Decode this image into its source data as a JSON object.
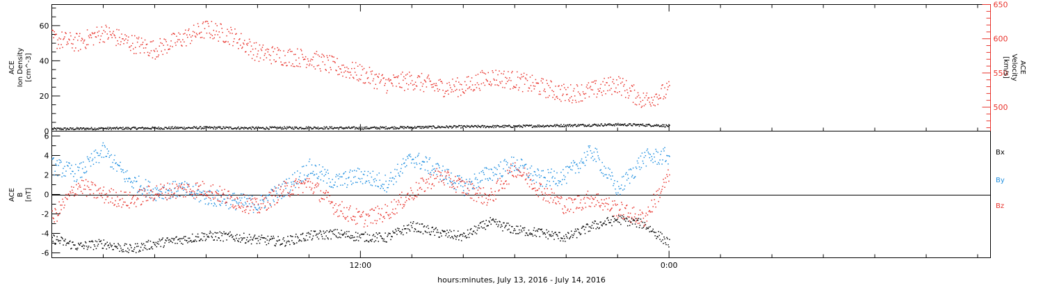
{
  "colors": {
    "black": "#000000",
    "red": "#e8312a",
    "blue": "#1f8fe0"
  },
  "xaxis": {
    "label": "hours:minutes, July 13, 2016 - July 14, 2016",
    "ticks": [
      "12:00",
      "0:00"
    ]
  },
  "chart_data": [
    {
      "type": "scatter",
      "panel": "top",
      "ylabel_left": [
        "ACE",
        "Ion Density",
        "[cm^-3]"
      ],
      "ylabel_right": [
        "ACE",
        "Velocity",
        "[km/s]"
      ],
      "ylim_left": [
        0,
        72
      ],
      "ylim_right": [
        465,
        650
      ],
      "yticks_left": [
        "0",
        "20",
        "40",
        "60"
      ],
      "yticks_right": [
        "500",
        "550",
        "600",
        "650"
      ],
      "x_unit": "hours since July 13, 2016 00:00",
      "xlim": [
        0,
        36.5
      ],
      "series": [
        {
          "name": "Ion Density",
          "axis": "left",
          "color": "#000000",
          "x": [
            0.0,
            2.0,
            4.0,
            6.0,
            8.0,
            10.0,
            12.0,
            14.0,
            16.0,
            18.0,
            20.0,
            22.0,
            23.5,
            24.0
          ],
          "y": [
            1.5,
            1.8,
            2.0,
            2.2,
            2.0,
            2.2,
            2.0,
            2.4,
            2.8,
            3.0,
            3.5,
            4.0,
            3.6,
            3.2
          ]
        },
        {
          "name": "Velocity",
          "axis": "right",
          "color": "#e8312a",
          "x": [
            0.0,
            1.0,
            2.0,
            3.0,
            4.0,
            5.0,
            6.0,
            7.0,
            8.0,
            9.0,
            10.0,
            11.0,
            12.0,
            13.0,
            14.0,
            15.0,
            16.0,
            17.0,
            18.0,
            19.0,
            20.0,
            21.0,
            22.0,
            23.0,
            24.0
          ],
          "y": [
            600,
            595,
            610,
            595,
            585,
            600,
            615,
            605,
            580,
            575,
            572,
            560,
            550,
            535,
            540,
            530,
            530,
            545,
            540,
            530,
            520,
            525,
            535,
            510,
            525
          ]
        }
      ]
    },
    {
      "type": "scatter",
      "panel": "bottom",
      "ylabel": [
        "ACE",
        "B",
        "[nT]"
      ],
      "ylim": [
        -6.5,
        6.5
      ],
      "yticks": [
        "-6",
        "-4",
        "-2",
        "0",
        "2",
        "4",
        "6"
      ],
      "x_unit": "hours since July 13, 2016 00:00",
      "xlim": [
        0,
        36.5
      ],
      "legend": [
        "Bx",
        "By",
        "Bz"
      ],
      "series": [
        {
          "name": "Bx",
          "color": "#000000",
          "x": [
            0.0,
            1.0,
            2.0,
            3.0,
            4.0,
            5.0,
            6.0,
            7.0,
            8.0,
            9.0,
            10.0,
            11.0,
            12.0,
            13.0,
            14.0,
            15.0,
            16.0,
            17.0,
            18.0,
            19.0,
            20.0,
            21.0,
            22.0,
            23.0,
            24.0
          ],
          "y": [
            -4.5,
            -5.3,
            -5.0,
            -5.6,
            -5.0,
            -4.6,
            -4.2,
            -4.3,
            -4.6,
            -4.8,
            -4.2,
            -4.0,
            -4.3,
            -4.4,
            -3.2,
            -3.9,
            -4.3,
            -2.8,
            -3.6,
            -3.9,
            -4.4,
            -3.2,
            -2.5,
            -3.0,
            -5.0
          ]
        },
        {
          "name": "By",
          "color": "#1f8fe0",
          "x": [
            0.0,
            1.0,
            2.0,
            3.0,
            4.0,
            5.0,
            6.0,
            7.0,
            8.0,
            9.0,
            10.0,
            11.0,
            12.0,
            13.0,
            14.0,
            15.0,
            16.0,
            17.0,
            18.0,
            19.0,
            20.0,
            21.0,
            22.0,
            23.0,
            24.0
          ],
          "y": [
            3.0,
            2.2,
            4.5,
            1.5,
            0.3,
            0.6,
            -0.2,
            -0.6,
            -1.0,
            0.6,
            2.8,
            1.3,
            2.0,
            1.2,
            3.8,
            2.5,
            0.8,
            2.2,
            3.2,
            1.6,
            2.0,
            4.5,
            0.5,
            3.8,
            4.0
          ]
        },
        {
          "name": "Bz",
          "color": "#e8312a",
          "x": [
            0.0,
            1.0,
            2.0,
            3.0,
            4.0,
            5.0,
            6.0,
            7.0,
            8.0,
            9.0,
            10.0,
            11.0,
            12.0,
            13.0,
            14.0,
            15.0,
            16.0,
            17.0,
            18.0,
            19.0,
            20.0,
            21.0,
            22.0,
            23.0,
            24.0
          ],
          "y": [
            -2.5,
            1.0,
            0.0,
            -0.6,
            0.3,
            0.5,
            0.6,
            -0.5,
            -1.3,
            0.5,
            1.2,
            -1.2,
            -2.5,
            -1.8,
            0.2,
            2.0,
            0.8,
            -0.4,
            2.8,
            0.5,
            -1.2,
            -0.3,
            -1.5,
            -2.5,
            2.0
          ]
        }
      ]
    }
  ]
}
